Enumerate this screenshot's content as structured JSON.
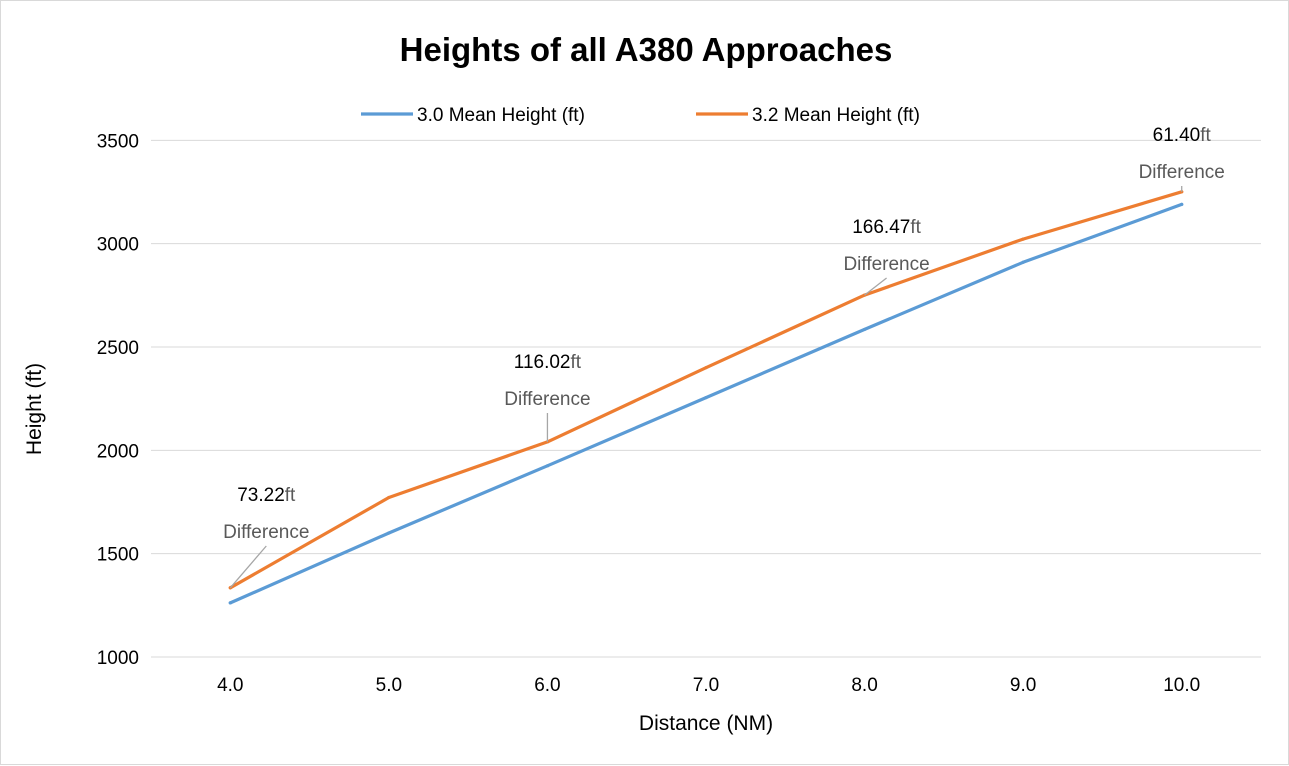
{
  "chart_data": {
    "type": "line",
    "title": "Heights of all A380 Approaches",
    "xlabel": "Distance (NM)",
    "ylabel": "Height (ft)",
    "categories": [
      "4.0",
      "5.0",
      "6.0",
      "7.0",
      "8.0",
      "9.0",
      "10.0"
    ],
    "ylim": [
      1000,
      3700
    ],
    "yticks": [
      "1000",
      "1500",
      "2000",
      "2500",
      "3000",
      "3500"
    ],
    "grid": "horizontal",
    "legend_position": "top",
    "series": [
      {
        "name": "3.0 Mean Height (ft)",
        "color": "#5b9bd5",
        "values": [
          1262,
          1600,
          1925,
          2255,
          2585,
          2910,
          3190
        ]
      },
      {
        "name": "3.2 Mean Height (ft)",
        "color": "#ed7d31",
        "values": [
          1335,
          1772,
          2041,
          2400,
          2751,
          3022,
          3251
        ]
      }
    ],
    "annotations": [
      {
        "category": "4.0",
        "series": "3.2 Mean Height (ft)",
        "value": "73.22",
        "suffix": "ft",
        "note": "Difference"
      },
      {
        "category": "6.0",
        "series": "3.2 Mean Height (ft)",
        "value": "116.02",
        "suffix": "ft",
        "note": "Difference"
      },
      {
        "category": "8.0",
        "series": "3.2 Mean Height (ft)",
        "value": "166.47",
        "suffix": "ft",
        "note": "Difference"
      },
      {
        "category": "10.0",
        "series": "3.2 Mean Height (ft)",
        "value": "61.40",
        "suffix": "ft",
        "note": "Difference"
      }
    ]
  }
}
